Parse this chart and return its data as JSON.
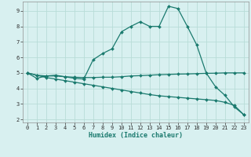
{
  "xlabel": "Humidex (Indice chaleur)",
  "background_color": "#d8f0f0",
  "grid_color": "#b8dcd8",
  "line_color": "#1a7a6e",
  "xlim": [
    -0.5,
    23.5
  ],
  "ylim": [
    1.8,
    9.6
  ],
  "xticks": [
    0,
    1,
    2,
    3,
    4,
    5,
    6,
    7,
    8,
    9,
    10,
    11,
    12,
    13,
    14,
    15,
    16,
    17,
    18,
    19,
    20,
    21,
    22,
    23
  ],
  "yticks": [
    2,
    3,
    4,
    5,
    6,
    7,
    8,
    9
  ],
  "curve1_x": [
    0,
    1,
    2,
    3,
    4,
    5,
    6,
    7,
    8,
    9,
    10,
    11,
    12,
    13,
    14,
    15,
    16,
    17,
    18,
    19,
    20,
    21,
    22,
    23
  ],
  "curve1_y": [
    5.0,
    4.65,
    4.8,
    4.85,
    4.75,
    4.65,
    4.6,
    5.85,
    6.25,
    6.55,
    7.65,
    8.0,
    8.3,
    8.0,
    8.0,
    9.3,
    9.15,
    8.0,
    6.8,
    5.0,
    4.1,
    3.55,
    2.8,
    2.3
  ],
  "curve2_x": [
    0,
    1,
    2,
    3,
    4,
    5,
    6,
    7,
    8,
    9,
    10,
    11,
    12,
    13,
    14,
    15,
    16,
    17,
    18,
    19,
    20,
    21,
    22,
    23
  ],
  "curve2_y": [
    5.0,
    4.85,
    4.8,
    4.8,
    4.75,
    4.72,
    4.7,
    4.7,
    4.72,
    4.72,
    4.75,
    4.8,
    4.82,
    4.85,
    4.88,
    4.9,
    4.92,
    4.93,
    4.95,
    4.97,
    4.98,
    5.0,
    5.0,
    5.0
  ],
  "curve3_x": [
    0,
    1,
    2,
    3,
    4,
    5,
    6,
    7,
    8,
    9,
    10,
    11,
    12,
    13,
    14,
    15,
    16,
    17,
    18,
    19,
    20,
    21,
    22,
    23
  ],
  "curve3_y": [
    5.0,
    4.85,
    4.7,
    4.6,
    4.5,
    4.4,
    4.3,
    4.2,
    4.1,
    4.0,
    3.9,
    3.8,
    3.7,
    3.6,
    3.52,
    3.47,
    3.42,
    3.37,
    3.32,
    3.27,
    3.22,
    3.1,
    2.9,
    2.3
  ]
}
